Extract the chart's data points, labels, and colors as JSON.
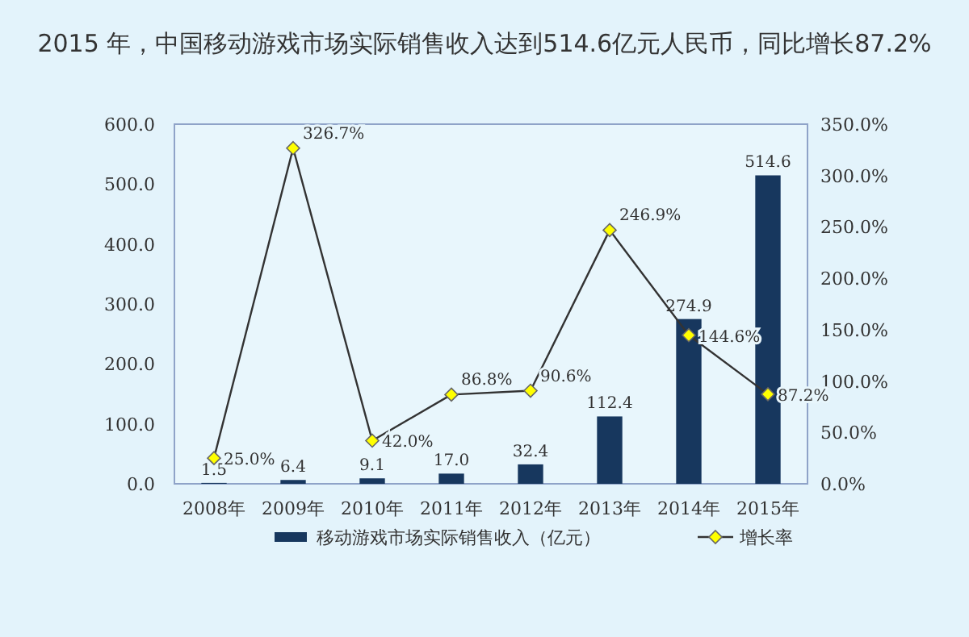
{
  "chart_data": {
    "type": "bar",
    "title": "2015 年，中国移动游戏市场实际销售收入达到514.6亿元人民币，同比增长87.2%",
    "categories": [
      "2008年",
      "2009年",
      "2010年",
      "2011年",
      "2012年",
      "2013年",
      "2014年",
      "2015年"
    ],
    "series": [
      {
        "name": "移动游戏市场实际销售收入（亿元）",
        "color": "#17375e",
        "values": [
          1.5,
          6.4,
          9.1,
          17.0,
          32.4,
          112.4,
          274.9,
          514.6
        ],
        "value_labels": [
          "1.5",
          "6.4",
          "9.1",
          "17.0",
          "32.4",
          "112.4",
          "274.9",
          "514.6"
        ]
      },
      {
        "name": "增长率",
        "type": "line",
        "axis": "y2",
        "color": "#333333",
        "marker": "diamond",
        "values": [
          25.0,
          326.7,
          42.0,
          86.8,
          90.6,
          246.9,
          144.6,
          87.2
        ],
        "value_labels": [
          "25.0%",
          "326.7%",
          "42.0%",
          "86.8%",
          "90.6%",
          "246.9%",
          "144.6%",
          "87.2%"
        ]
      }
    ],
    "ylim": [
      0,
      600
    ],
    "yticks": [
      {
        "value": 0,
        "label": "0.0"
      },
      {
        "value": 100,
        "label": "100.0"
      },
      {
        "value": 200,
        "label": "200.0"
      },
      {
        "value": 300,
        "label": "300.0"
      },
      {
        "value": 400,
        "label": "400.0"
      },
      {
        "value": 500,
        "label": "500.0"
      },
      {
        "value": 600,
        "label": "600.0"
      }
    ],
    "y2lim": [
      0,
      350
    ],
    "y2ticks": [
      {
        "value": 0,
        "label": "0.0%"
      },
      {
        "value": 50,
        "label": "50.0%"
      },
      {
        "value": 100,
        "label": "100.0%"
      },
      {
        "value": 150,
        "label": "150.0%"
      },
      {
        "value": 200,
        "label": "200.0%"
      },
      {
        "value": 250,
        "label": "250.0%"
      },
      {
        "value": 300,
        "label": "300.0%"
      },
      {
        "value": 350,
        "label": "350.0%"
      }
    ],
    "grid": false,
    "legend": "bottom"
  }
}
